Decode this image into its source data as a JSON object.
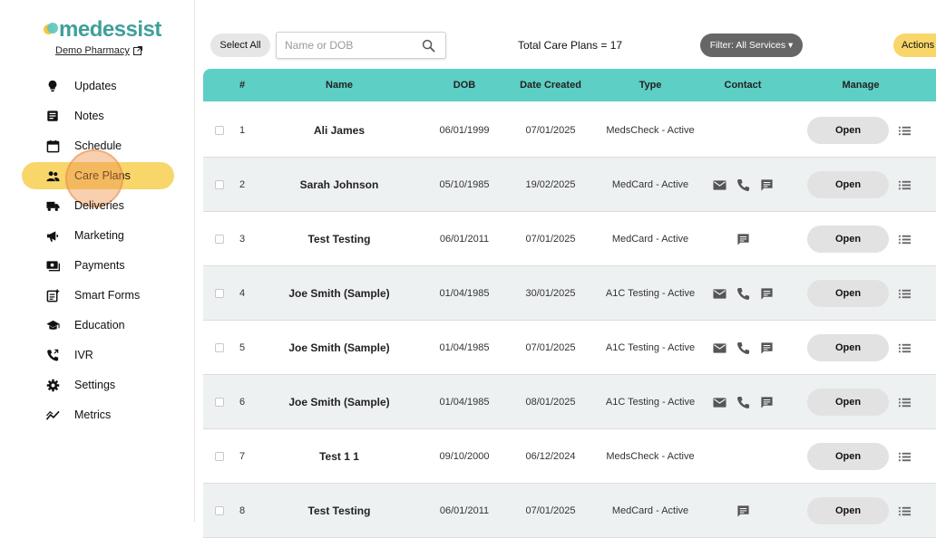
{
  "brand": {
    "logo_text": "medessist",
    "pharmacy_link": "Demo Pharmacy"
  },
  "nav": [
    {
      "label": "Updates",
      "icon": "lightbulb-icon"
    },
    {
      "label": "Notes",
      "icon": "notes-icon"
    },
    {
      "label": "Schedule",
      "icon": "calendar-icon"
    },
    {
      "label": "Care Plans",
      "icon": "people-icon",
      "active": true
    },
    {
      "label": "Deliveries",
      "icon": "truck-icon"
    },
    {
      "label": "Marketing",
      "icon": "megaphone-icon"
    },
    {
      "label": "Payments",
      "icon": "payments-icon"
    },
    {
      "label": "Smart Forms",
      "icon": "smart-forms-icon"
    },
    {
      "label": "Education",
      "icon": "graduation-cap-icon"
    },
    {
      "label": "IVR",
      "icon": "phone-forward-icon"
    },
    {
      "label": "Settings",
      "icon": "gear-icon"
    },
    {
      "label": "Metrics",
      "icon": "chart-line-icon"
    }
  ],
  "toolbar": {
    "select_all": "Select All",
    "search_placeholder": "Name or DOB",
    "total": "Total Care Plans = 17",
    "filter": "Filter: All Services ▾",
    "actions": "Actions"
  },
  "table": {
    "headers": {
      "num": "#",
      "name": "Name",
      "dob": "DOB",
      "date_created": "Date Created",
      "type": "Type",
      "contact": "Contact",
      "manage": "Manage"
    },
    "open_label": "Open",
    "rows": [
      {
        "num": "1",
        "name": "Ali James",
        "dob": "06/01/1999",
        "created": "07/01/2025",
        "type": "MedsCheck - Active",
        "contact": []
      },
      {
        "num": "2",
        "name": "Sarah Johnson",
        "dob": "05/10/1985",
        "created": "19/02/2025",
        "type": "MedCard - Active",
        "contact": [
          "email",
          "phone",
          "message"
        ]
      },
      {
        "num": "3",
        "name": "Test Testing",
        "dob": "06/01/2011",
        "created": "07/01/2025",
        "type": "MedCard - Active",
        "contact": [
          "message"
        ]
      },
      {
        "num": "4",
        "name": "Joe Smith (Sample)",
        "dob": "01/04/1985",
        "created": "30/01/2025",
        "type": "A1C Testing - Active",
        "contact": [
          "email",
          "phone",
          "message"
        ]
      },
      {
        "num": "5",
        "name": "Joe Smith (Sample)",
        "dob": "01/04/1985",
        "created": "07/01/2025",
        "type": "A1C Testing - Active",
        "contact": [
          "email",
          "phone",
          "message"
        ]
      },
      {
        "num": "6",
        "name": "Joe Smith (Sample)",
        "dob": "01/04/1985",
        "created": "08/01/2025",
        "type": "A1C Testing - Active",
        "contact": [
          "email",
          "phone",
          "message"
        ]
      },
      {
        "num": "7",
        "name": "Test 1 1",
        "dob": "09/10/2000",
        "created": "06/12/2024",
        "type": "MedsCheck - Active",
        "contact": []
      },
      {
        "num": "8",
        "name": "Test Testing",
        "dob": "06/01/2011",
        "created": "07/01/2025",
        "type": "MedCard - Active",
        "contact": [
          "message"
        ]
      }
    ]
  },
  "colors": {
    "brand_teal": "#3f9f9a",
    "header_teal": "#5ecfc5",
    "active_yellow": "#f8d66a",
    "filter_gray": "#666666"
  }
}
